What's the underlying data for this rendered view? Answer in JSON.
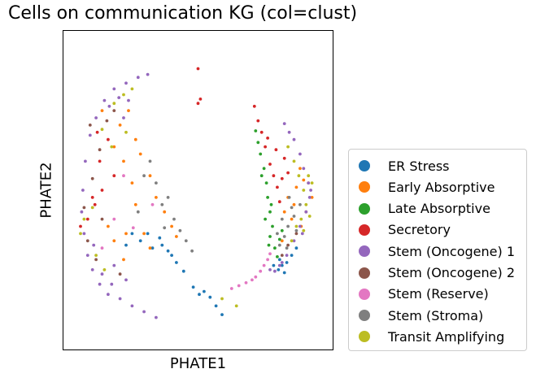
{
  "chart_data": {
    "type": "scatter",
    "title": "Cells on communication KG (col=clust)",
    "xlabel": "PHATE1",
    "ylabel": "PHATE2",
    "xticks": [],
    "yticks": [],
    "xlim": [
      -1.0,
      1.0
    ],
    "ylim": [
      -1.0,
      1.0
    ],
    "grid": false,
    "legend_position": "right-outside",
    "marker": "small-dot",
    "series": [
      {
        "name": "ER Stress",
        "color": "#1f77b4",
        "points": [
          [
            -0.04,
            -0.67
          ],
          [
            0.01,
            -0.72
          ],
          [
            0.1,
            -0.74
          ],
          [
            -0.12,
            -0.56
          ],
          [
            -0.22,
            -0.45
          ],
          [
            -0.32,
            -0.33
          ],
          [
            -0.42,
            -0.3
          ],
          [
            -0.3,
            -0.38
          ],
          [
            -0.18,
            -0.5
          ],
          [
            0.05,
            -0.7
          ],
          [
            -0.38,
            -0.4
          ],
          [
            -0.48,
            -0.35
          ],
          [
            -0.55,
            -0.3
          ],
          [
            0.63,
            -0.52
          ],
          [
            0.67,
            -0.55
          ],
          [
            0.72,
            -0.57
          ],
          [
            0.68,
            -0.48
          ],
          [
            0.78,
            -0.45
          ],
          [
            0.74,
            -0.5
          ],
          [
            0.82,
            -0.4
          ],
          [
            -0.6,
            -0.38
          ],
          [
            0.2,
            -0.86
          ],
          [
            0.15,
            -0.8
          ],
          [
            -0.25,
            -0.42
          ],
          [
            0.7,
            -0.52
          ]
        ]
      },
      {
        "name": "Early Absorptive",
        "color": "#ff7f0e",
        "points": [
          [
            -0.62,
            0.2
          ],
          [
            -0.55,
            0.05
          ],
          [
            -0.52,
            -0.1
          ],
          [
            -0.45,
            -0.3
          ],
          [
            -0.4,
            -0.4
          ],
          [
            -0.6,
            -0.3
          ],
          [
            -0.7,
            -0.35
          ],
          [
            -0.75,
            -0.25
          ],
          [
            -0.52,
            0.35
          ],
          [
            -0.4,
            0.1
          ],
          [
            -0.35,
            -0.05
          ],
          [
            -0.28,
            -0.15
          ],
          [
            -0.65,
            0.45
          ],
          [
            -0.7,
            0.3
          ],
          [
            -0.58,
            0.55
          ],
          [
            -0.22,
            -0.25
          ],
          [
            0.88,
            0.07
          ],
          [
            0.92,
            0.05
          ],
          [
            0.8,
            -0.1
          ],
          [
            0.75,
            -0.05
          ],
          [
            0.9,
            -0.15
          ],
          [
            0.85,
            0.15
          ],
          [
            0.95,
            -0.05
          ],
          [
            0.78,
            -0.2
          ],
          [
            -0.8,
            0.55
          ],
          [
            -0.48,
            0.25
          ],
          [
            -0.62,
            -0.48
          ],
          [
            0.7,
            -0.35
          ],
          [
            0.72,
            -0.15
          ],
          [
            0.86,
            -0.25
          ],
          [
            0.82,
            0.02
          ],
          [
            -0.18,
            -0.32
          ]
        ]
      },
      {
        "name": "Late Absorptive",
        "color": "#2ca02c",
        "points": [
          [
            0.48,
            0.41
          ],
          [
            0.5,
            0.33
          ],
          [
            0.52,
            0.25
          ],
          [
            0.55,
            0.15
          ],
          [
            0.57,
            0.05
          ],
          [
            0.58,
            -0.05
          ],
          [
            0.6,
            -0.15
          ],
          [
            0.62,
            -0.25
          ],
          [
            0.6,
            -0.32
          ],
          [
            0.64,
            -0.4
          ],
          [
            0.66,
            -0.46
          ],
          [
            0.7,
            -0.28
          ],
          [
            0.56,
            -0.2
          ],
          [
            0.53,
            0.1
          ],
          [
            0.59,
            -0.38
          ],
          [
            0.61,
            -0.1
          ],
          [
            0.68,
            -0.34
          ]
        ]
      },
      {
        "name": "Secretory",
        "color": "#d62728",
        "points": [
          [
            0.47,
            0.58
          ],
          [
            0.5,
            0.48
          ],
          [
            0.53,
            0.4
          ],
          [
            0.56,
            0.3
          ],
          [
            0.6,
            0.18
          ],
          [
            0.63,
            0.1
          ],
          [
            0.66,
            0.02
          ],
          [
            0.68,
            -0.08
          ],
          [
            0.7,
            0.08
          ],
          [
            0.72,
            0.22
          ],
          [
            0.65,
            0.28
          ],
          [
            -0.98,
            -0.25
          ],
          [
            -0.92,
            -0.2
          ],
          [
            -0.86,
            -0.1
          ],
          [
            -0.8,
            0.0
          ],
          [
            -0.82,
            0.2
          ],
          [
            -0.75,
            0.35
          ],
          [
            -0.84,
            0.4
          ],
          [
            -0.88,
            -0.05
          ],
          [
            0.0,
            0.6
          ],
          [
            0.02,
            0.63
          ],
          [
            0.0,
            0.84
          ],
          [
            -0.7,
            0.1
          ],
          [
            0.75,
            0.12
          ],
          [
            0.58,
            0.36
          ]
        ]
      },
      {
        "name": "Stem (Oncogene) 1",
        "color": "#9467bd",
        "points": [
          [
            -0.7,
            0.7
          ],
          [
            -0.6,
            0.74
          ],
          [
            -0.5,
            0.78
          ],
          [
            -0.42,
            0.8
          ],
          [
            -0.78,
            0.62
          ],
          [
            -0.85,
            0.5
          ],
          [
            -0.9,
            0.38
          ],
          [
            -0.94,
            0.2
          ],
          [
            -0.96,
            0.0
          ],
          [
            -0.97,
            -0.15
          ],
          [
            -0.95,
            -0.3
          ],
          [
            -0.92,
            -0.45
          ],
          [
            -0.88,
            -0.55
          ],
          [
            -0.82,
            -0.65
          ],
          [
            -0.75,
            -0.72
          ],
          [
            -0.65,
            -0.75
          ],
          [
            -0.55,
            -0.8
          ],
          [
            -0.45,
            -0.84
          ],
          [
            -0.35,
            -0.88
          ],
          [
            -0.74,
            0.58
          ],
          [
            -0.66,
            0.64
          ],
          [
            -0.87,
            -0.38
          ],
          [
            -0.8,
            -0.58
          ],
          [
            -0.62,
            0.5
          ],
          [
            -0.58,
            0.62
          ],
          [
            0.8,
            0.35
          ],
          [
            0.85,
            0.25
          ],
          [
            0.88,
            0.15
          ],
          [
            0.92,
            0.05
          ],
          [
            0.93,
            -0.05
          ],
          [
            0.9,
            -0.15
          ],
          [
            0.85,
            -0.25
          ],
          [
            0.8,
            -0.35
          ],
          [
            0.74,
            -0.45
          ],
          [
            0.68,
            -0.52
          ],
          [
            0.6,
            -0.55
          ],
          [
            0.76,
            0.4
          ],
          [
            0.72,
            0.46
          ],
          [
            0.94,
            0.0
          ],
          [
            0.87,
            -0.3
          ],
          [
            0.7,
            -0.5
          ],
          [
            0.64,
            -0.56
          ],
          [
            -0.7,
            -0.52
          ],
          [
            -0.6,
            -0.62
          ],
          [
            -0.72,
            -0.65
          ]
        ]
      },
      {
        "name": "Stem (Oncogene) 2",
        "color": "#8c564b",
        "points": [
          [
            -0.95,
            -0.12
          ],
          [
            -0.88,
            0.08
          ],
          [
            -0.82,
            0.28
          ],
          [
            -0.76,
            0.48
          ],
          [
            -0.92,
            -0.35
          ],
          [
            -0.85,
            -0.48
          ],
          [
            -0.9,
            0.45
          ],
          [
            -0.7,
            0.55
          ],
          [
            0.82,
            -0.3
          ],
          [
            0.75,
            -0.38
          ],
          [
            0.7,
            -0.45
          ],
          [
            -0.65,
            -0.58
          ],
          [
            -0.8,
            -0.2
          ]
        ]
      },
      {
        "name": "Stem (Reserve)",
        "color": "#e377c2",
        "points": [
          [
            0.48,
            -0.6
          ],
          [
            0.52,
            -0.56
          ],
          [
            0.55,
            -0.52
          ],
          [
            0.58,
            -0.48
          ],
          [
            0.4,
            -0.64
          ],
          [
            0.34,
            -0.66
          ],
          [
            0.28,
            -0.68
          ],
          [
            -0.38,
            -0.1
          ],
          [
            -0.8,
            -0.4
          ],
          [
            -0.7,
            -0.2
          ],
          [
            0.6,
            -0.44
          ],
          [
            -0.54,
            -0.26
          ],
          [
            -0.62,
            0.1
          ],
          [
            0.45,
            -0.62
          ]
        ]
      },
      {
        "name": "Stem (Stroma)",
        "color": "#7f7f7f",
        "points": [
          [
            0.7,
            -0.2
          ],
          [
            0.75,
            -0.25
          ],
          [
            0.8,
            -0.18
          ],
          [
            0.72,
            -0.32
          ],
          [
            0.68,
            -0.38
          ],
          [
            0.85,
            -0.1
          ],
          [
            0.78,
            -0.12
          ],
          [
            0.74,
            -0.4
          ],
          [
            -0.2,
            -0.2
          ],
          [
            -0.15,
            -0.28
          ],
          [
            -0.1,
            -0.35
          ],
          [
            -0.05,
            -0.42
          ],
          [
            -0.35,
            0.05
          ],
          [
            -0.3,
            -0.1
          ],
          [
            -0.25,
            -0.05
          ],
          [
            -0.45,
            0.1
          ],
          [
            -0.4,
            0.2
          ],
          [
            -0.5,
            -0.15
          ],
          [
            0.82,
            -0.28
          ],
          [
            0.66,
            -0.3
          ],
          [
            0.76,
            -0.05
          ],
          [
            -0.28,
            -0.26
          ]
        ]
      },
      {
        "name": "Transit Amplifying",
        "color": "#bcbd22",
        "points": [
          [
            0.75,
            0.3
          ],
          [
            0.8,
            0.2
          ],
          [
            0.84,
            0.1
          ],
          [
            0.88,
            0.0
          ],
          [
            0.9,
            -0.1
          ],
          [
            0.86,
            -0.2
          ],
          [
            0.82,
            -0.25
          ],
          [
            0.78,
            -0.35
          ],
          [
            0.92,
            0.1
          ],
          [
            0.95,
            0.05
          ],
          [
            -0.7,
            0.6
          ],
          [
            -0.62,
            0.66
          ],
          [
            -0.55,
            0.7
          ],
          [
            -0.95,
            -0.2
          ],
          [
            -0.98,
            -0.3
          ],
          [
            -0.88,
            -0.12
          ],
          [
            -0.8,
            0.42
          ],
          [
            -0.72,
            0.3
          ],
          [
            -0.85,
            -0.45
          ],
          [
            0.2,
            -0.75
          ],
          [
            0.32,
            -0.8
          ],
          [
            -0.6,
            0.4
          ],
          [
            0.93,
            -0.18
          ],
          [
            0.88,
            -0.28
          ],
          [
            -0.78,
            -0.55
          ]
        ]
      }
    ]
  }
}
